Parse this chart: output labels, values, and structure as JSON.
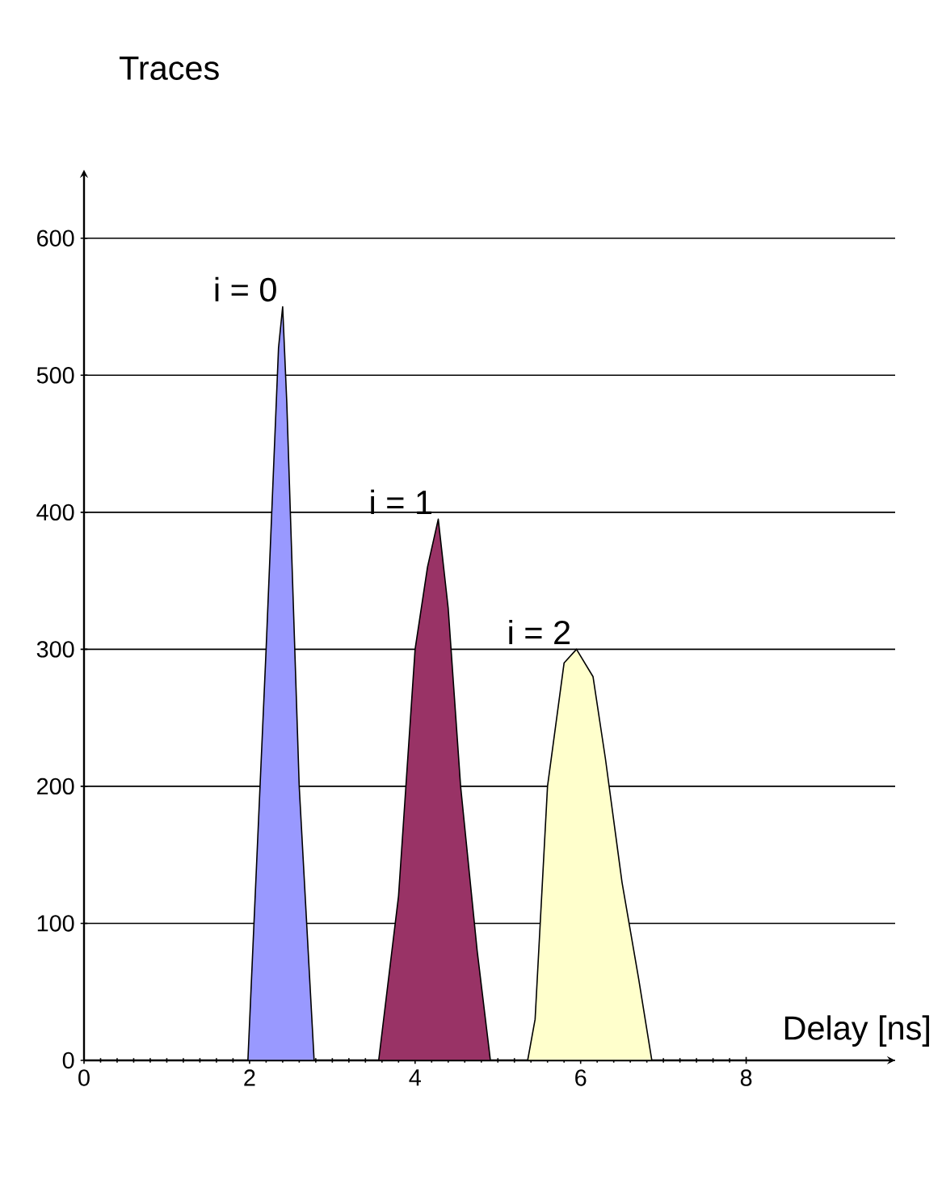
{
  "chart_data": {
    "type": "area",
    "ylabel": "Traces",
    "xlabel": "Delay [ns]",
    "series": [
      {
        "color": "#9999ff",
        "x": [
          1.98,
          2.2,
          2.35,
          2.4,
          2.45,
          2.6,
          2.78
        ],
        "values": [
          0,
          300,
          520,
          550,
          480,
          200,
          0
        ]
      },
      {
        "color": "#993366",
        "x": [
          3.56,
          3.8,
          4.0,
          4.15,
          4.28,
          4.4,
          4.55,
          4.75,
          4.91
        ],
        "values": [
          0,
          120,
          300,
          360,
          395,
          330,
          200,
          80,
          0
        ]
      },
      {
        "color": "#ffffcc",
        "x": [
          5.36,
          5.45,
          5.6,
          5.8,
          5.95,
          6.15,
          6.3,
          6.5,
          6.7,
          6.86
        ],
        "values": [
          0,
          30,
          200,
          290,
          300,
          280,
          220,
          130,
          60,
          0
        ]
      }
    ],
    "annotations": [
      {
        "text": "i = 0",
        "x": 2.4,
        "y": 550
      },
      {
        "text": "i = 1",
        "x": 4.28,
        "y": 395
      },
      {
        "text": "i = 2",
        "x": 5.95,
        "y": 300
      }
    ],
    "xlim": [
      0,
      9.8
    ],
    "ylim": [
      0,
      650
    ],
    "xticks": [
      0,
      2,
      4,
      6,
      8
    ],
    "yticks": [
      0,
      100,
      200,
      300,
      400,
      500,
      600
    ],
    "grid": "y",
    "marker": "none",
    "line_style": "solid"
  }
}
